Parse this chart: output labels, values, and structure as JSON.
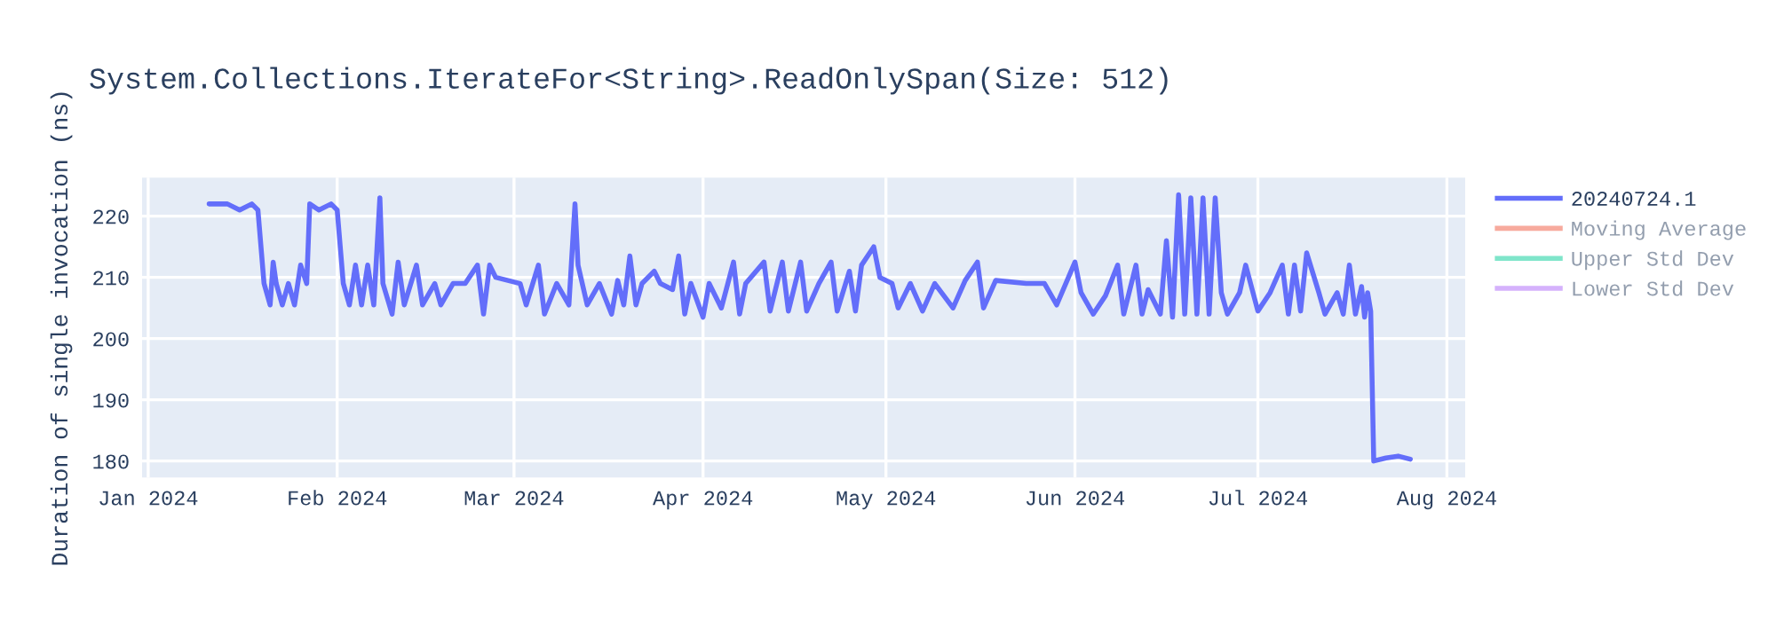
{
  "chart_data": {
    "type": "line",
    "title": "System.Collections.IterateFor<String>.ReadOnlySpan(Size: 512)",
    "ylabel": "Duration of single invocation (ns)",
    "x": [
      "2024-01-11",
      "2024-01-14",
      "2024-01-16",
      "2024-01-18",
      "2024-01-19",
      "2024-01-20",
      "2024-01-21",
      "2024-01-21T12:00",
      "2024-01-22",
      "2024-01-23",
      "2024-01-24",
      "2024-01-25",
      "2024-01-26",
      "2024-01-27",
      "2024-01-27T12:00",
      "2024-01-29",
      "2024-01-31",
      "2024-02-01",
      "2024-02-02",
      "2024-02-03",
      "2024-02-04",
      "2024-02-05",
      "2024-02-06",
      "2024-02-07",
      "2024-02-08",
      "2024-02-08T12:00",
      "2024-02-10",
      "2024-02-11",
      "2024-02-12",
      "2024-02-14",
      "2024-02-15",
      "2024-02-17",
      "2024-02-18",
      "2024-02-20",
      "2024-02-22",
      "2024-02-24",
      "2024-02-25",
      "2024-02-26",
      "2024-02-27",
      "2024-03-02",
      "2024-03-03",
      "2024-03-05",
      "2024-03-06",
      "2024-03-08",
      "2024-03-10",
      "2024-03-11",
      "2024-03-11T12:00",
      "2024-03-13",
      "2024-03-15",
      "2024-03-17",
      "2024-03-18",
      "2024-03-19",
      "2024-03-20",
      "2024-03-21",
      "2024-03-22",
      "2024-03-24",
      "2024-03-25",
      "2024-03-27",
      "2024-03-28",
      "2024-03-29",
      "2024-03-30",
      "2024-04-01",
      "2024-04-02",
      "2024-04-04",
      "2024-04-06",
      "2024-04-07",
      "2024-04-08",
      "2024-04-11",
      "2024-04-12",
      "2024-04-14",
      "2024-04-15",
      "2024-04-17",
      "2024-04-18",
      "2024-04-20",
      "2024-04-22",
      "2024-04-23",
      "2024-04-25",
      "2024-04-26",
      "2024-04-27",
      "2024-04-29",
      "2024-04-30",
      "2024-05-02",
      "2024-05-03",
      "2024-05-05",
      "2024-05-07",
      "2024-05-09",
      "2024-05-12",
      "2024-05-14",
      "2024-05-16",
      "2024-05-17",
      "2024-05-19",
      "2024-05-24",
      "2024-05-27",
      "2024-05-29",
      "2024-06-01",
      "2024-06-02",
      "2024-06-04",
      "2024-06-06",
      "2024-06-08",
      "2024-06-09",
      "2024-06-11",
      "2024-06-12",
      "2024-06-13",
      "2024-06-15",
      "2024-06-16",
      "2024-06-17",
      "2024-06-18",
      "2024-06-19",
      "2024-06-20",
      "2024-06-21",
      "2024-06-22",
      "2024-06-23",
      "2024-06-24",
      "2024-06-25",
      "2024-06-26",
      "2024-06-28",
      "2024-06-29",
      "2024-07-01",
      "2024-07-03",
      "2024-07-05",
      "2024-07-06",
      "2024-07-07",
      "2024-07-08",
      "2024-07-09",
      "2024-07-11",
      "2024-07-12",
      "2024-07-14",
      "2024-07-15",
      "2024-07-16",
      "2024-07-17",
      "2024-07-18",
      "2024-07-18T12:00",
      "2024-07-19",
      "2024-07-19T12:00",
      "2024-07-20",
      "2024-07-22",
      "2024-07-24",
      "2024-07-26"
    ],
    "series": [
      {
        "name": "20240724.1",
        "color": "#636efa",
        "values": [
          222,
          222,
          221,
          222,
          221,
          209,
          205.5,
          212.5,
          209,
          205.5,
          209,
          205.5,
          212,
          209,
          222,
          221,
          222,
          221,
          209,
          205.5,
          212,
          205.5,
          212,
          205.5,
          223,
          209,
          204,
          212.5,
          205.5,
          212,
          205.5,
          209,
          205.5,
          209,
          209,
          212,
          204,
          212,
          210,
          209,
          205.5,
          212,
          204,
          209,
          205.5,
          222,
          212,
          205.5,
          209,
          204,
          209.5,
          205.5,
          213.5,
          205.5,
          209,
          211,
          209,
          208,
          213.5,
          204,
          209,
          203.5,
          209,
          205,
          212.5,
          204,
          209,
          212.5,
          204.5,
          212.5,
          204.5,
          212.5,
          204.5,
          209,
          212.5,
          204.5,
          211,
          204.5,
          212,
          215,
          210,
          209,
          205,
          209,
          204.5,
          209,
          205,
          209.5,
          212.5,
          205,
          209.5,
          209,
          209,
          205.5,
          212.5,
          207.5,
          204,
          207,
          212,
          204,
          212,
          204,
          208,
          204,
          216,
          203.5,
          223.5,
          204,
          223,
          204,
          223,
          204,
          223,
          207.5,
          204,
          207.5,
          212,
          204.5,
          207.5,
          212,
          204,
          212,
          204.5,
          214,
          207.5,
          204,
          207.5,
          204,
          212,
          204,
          208.5,
          203.5,
          207.5,
          204.5,
          180,
          180.5,
          180.8,
          180.3
        ]
      },
      {
        "name": "Moving Average",
        "color": "#ef553b",
        "values": [
          null,
          null,
          null,
          null,
          null,
          null,
          null,
          null,
          null,
          null,
          null,
          null,
          null,
          null,
          null,
          null,
          null,
          null,
          null,
          null,
          null,
          null,
          null,
          null,
          null,
          null,
          null,
          null,
          null,
          null,
          null,
          null,
          null,
          null,
          null,
          null,
          null,
          null,
          null,
          null,
          null,
          null,
          null,
          null,
          null,
          null,
          null,
          null,
          null,
          null,
          null,
          null,
          null,
          null,
          null,
          null,
          null,
          null,
          null,
          null,
          null,
          null,
          null,
          null,
          null,
          null,
          null,
          null,
          null,
          null,
          null,
          null,
          null,
          null,
          null,
          null,
          null,
          null,
          null,
          null,
          null,
          null,
          null,
          null,
          null,
          null,
          null,
          null,
          null,
          null,
          null,
          null,
          null,
          null,
          null,
          null,
          null,
          null,
          null,
          null,
          null,
          null,
          null,
          null,
          null,
          null,
          null,
          null,
          null,
          null,
          null,
          null,
          null,
          null,
          null,
          null,
          null,
          null,
          null,
          null,
          null,
          null,
          null,
          null,
          null,
          null,
          null,
          null,
          null,
          null,
          null,
          null,
          null,
          null,
          null,
          null,
          null,
          null
        ]
      },
      {
        "name": "Upper Std Dev",
        "color": "#00cc96",
        "values": [
          null,
          null,
          null,
          null,
          null,
          null,
          null,
          null,
          null,
          null,
          null,
          null,
          null,
          null,
          null,
          null,
          null,
          null,
          null,
          null,
          null,
          null,
          null,
          null,
          null,
          null,
          null,
          null,
          null,
          null,
          null,
          null,
          null,
          null,
          null,
          null,
          null,
          null,
          null,
          null,
          null,
          null,
          null,
          null,
          null,
          null,
          null,
          null,
          null,
          null,
          null,
          null,
          null,
          null,
          null,
          null,
          null,
          null,
          null,
          null,
          null,
          null,
          null,
          null,
          null,
          null,
          null,
          null,
          null,
          null,
          null,
          null,
          null,
          null,
          null,
          null,
          null,
          null,
          null,
          null,
          null,
          null,
          null,
          null,
          null,
          null,
          null,
          null,
          null,
          null,
          null,
          null,
          null,
          null,
          null,
          null,
          null,
          null,
          null,
          null,
          null,
          null,
          null,
          null,
          null,
          null,
          null,
          null,
          null,
          null,
          null,
          null,
          null,
          null,
          null,
          null,
          null,
          null,
          null,
          null,
          null,
          null,
          null,
          null,
          null,
          null,
          null,
          null,
          null,
          null,
          null,
          null,
          null,
          null,
          null,
          null,
          null,
          null
        ]
      },
      {
        "name": "Lower Std Dev",
        "color": "#ab63fa",
        "values": [
          null,
          null,
          null,
          null,
          null,
          null,
          null,
          null,
          null,
          null,
          null,
          null,
          null,
          null,
          null,
          null,
          null,
          null,
          null,
          null,
          null,
          null,
          null,
          null,
          null,
          null,
          null,
          null,
          null,
          null,
          null,
          null,
          null,
          null,
          null,
          null,
          null,
          null,
          null,
          null,
          null,
          null,
          null,
          null,
          null,
          null,
          null,
          null,
          null,
          null,
          null,
          null,
          null,
          null,
          null,
          null,
          null,
          null,
          null,
          null,
          null,
          null,
          null,
          null,
          null,
          null,
          null,
          null,
          null,
          null,
          null,
          null,
          null,
          null,
          null,
          null,
          null,
          null,
          null,
          null,
          null,
          null,
          null,
          null,
          null,
          null,
          null,
          null,
          null,
          null,
          null,
          null,
          null,
          null,
          null,
          null,
          null,
          null,
          null,
          null,
          null,
          null,
          null,
          null,
          null,
          null,
          null,
          null,
          null,
          null,
          null,
          null,
          null,
          null,
          null,
          null,
          null,
          null,
          null,
          null,
          null,
          null,
          null,
          null,
          null,
          null,
          null,
          null,
          null,
          null,
          null,
          null,
          null,
          null,
          null,
          null,
          null,
          null
        ]
      }
    ],
    "xlim": [
      "2023-12-31",
      "2024-08-04"
    ],
    "xticks": [
      {
        "value": "2024-01-01",
        "label": "Jan 2024"
      },
      {
        "value": "2024-02-01",
        "label": "Feb 2024"
      },
      {
        "value": "2024-03-01",
        "label": "Mar 2024"
      },
      {
        "value": "2024-04-01",
        "label": "Apr 2024"
      },
      {
        "value": "2024-05-01",
        "label": "May 2024"
      },
      {
        "value": "2024-06-01",
        "label": "Jun 2024"
      },
      {
        "value": "2024-07-01",
        "label": "Jul 2024"
      },
      {
        "value": "2024-08-01",
        "label": "Aug 2024"
      }
    ],
    "ylim": [
      177.3,
      226.3
    ],
    "yticks": [
      180,
      190,
      200,
      210,
      220
    ],
    "grid": true,
    "legend": "right"
  }
}
